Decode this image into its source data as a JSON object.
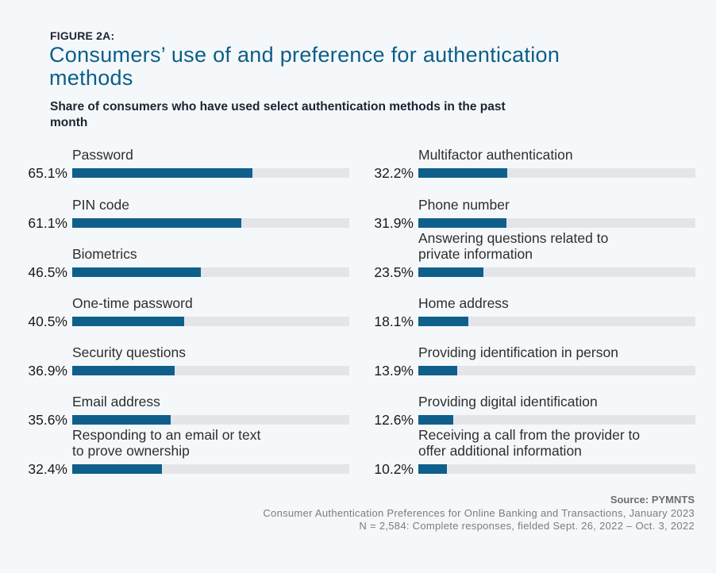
{
  "header": {
    "figure_label": "FIGURE 2A:",
    "title": "Consumers’ use of and preference for authentication methods",
    "subtitle": "Share of consumers who have used select authentication methods in the past month"
  },
  "chart_data": {
    "type": "bar",
    "orientation": "horizontal",
    "title": "Consumers’ use of and preference for authentication methods",
    "subtitle": "Share of consumers who have used select authentication methods in the past month",
    "xlabel": "",
    "ylabel": "",
    "xlim": [
      0,
      100
    ],
    "unit": "%",
    "grid": false,
    "colors": {
      "bar": "#0f5f8b",
      "track": "#e4e5e8",
      "title": "#0b5e8a"
    },
    "categories": [
      "Password",
      "PIN code",
      "Biometrics",
      "One-time password",
      "Security questions",
      "Email address",
      "Responding to an email or text to prove ownership",
      "Multifactor authentication",
      "Phone number",
      "Answering questions related to private information",
      "Home address",
      "Providing identification in person",
      "Providing digital identification",
      "Receiving a call from the provider to offer additional information"
    ],
    "values": [
      65.1,
      61.1,
      46.5,
      40.5,
      36.9,
      35.6,
      32.4,
      32.2,
      31.9,
      23.5,
      18.1,
      13.9,
      12.6,
      10.2
    ],
    "value_labels": [
      "65.1%",
      "61.1%",
      "46.5%",
      "40.5%",
      "36.9%",
      "35.6%",
      "32.4%",
      "32.2%",
      "31.9%",
      "23.5%",
      "18.1%",
      "13.9%",
      "12.6%",
      "10.2%"
    ],
    "display_labels": [
      "Password",
      "PIN code",
      "Biometrics",
      "One-time password",
      "Security questions",
      "Email address",
      "Responding to an email or text\nto prove ownership",
      "Multifactor authentication",
      "Phone number",
      "Answering questions related to\nprivate information",
      "Home address",
      "Providing identification in person",
      "Providing digital identification",
      "Receiving a call from the provider to\noffer additional information"
    ]
  },
  "footer": {
    "source": "Source: PYMNTS",
    "report": "Consumer Authentication Preferences for Online Banking and Transactions, January 2023",
    "sample": "N = 2,584: Complete responses, fielded Sept. 26, 2022 – Oct. 3, 2022"
  }
}
